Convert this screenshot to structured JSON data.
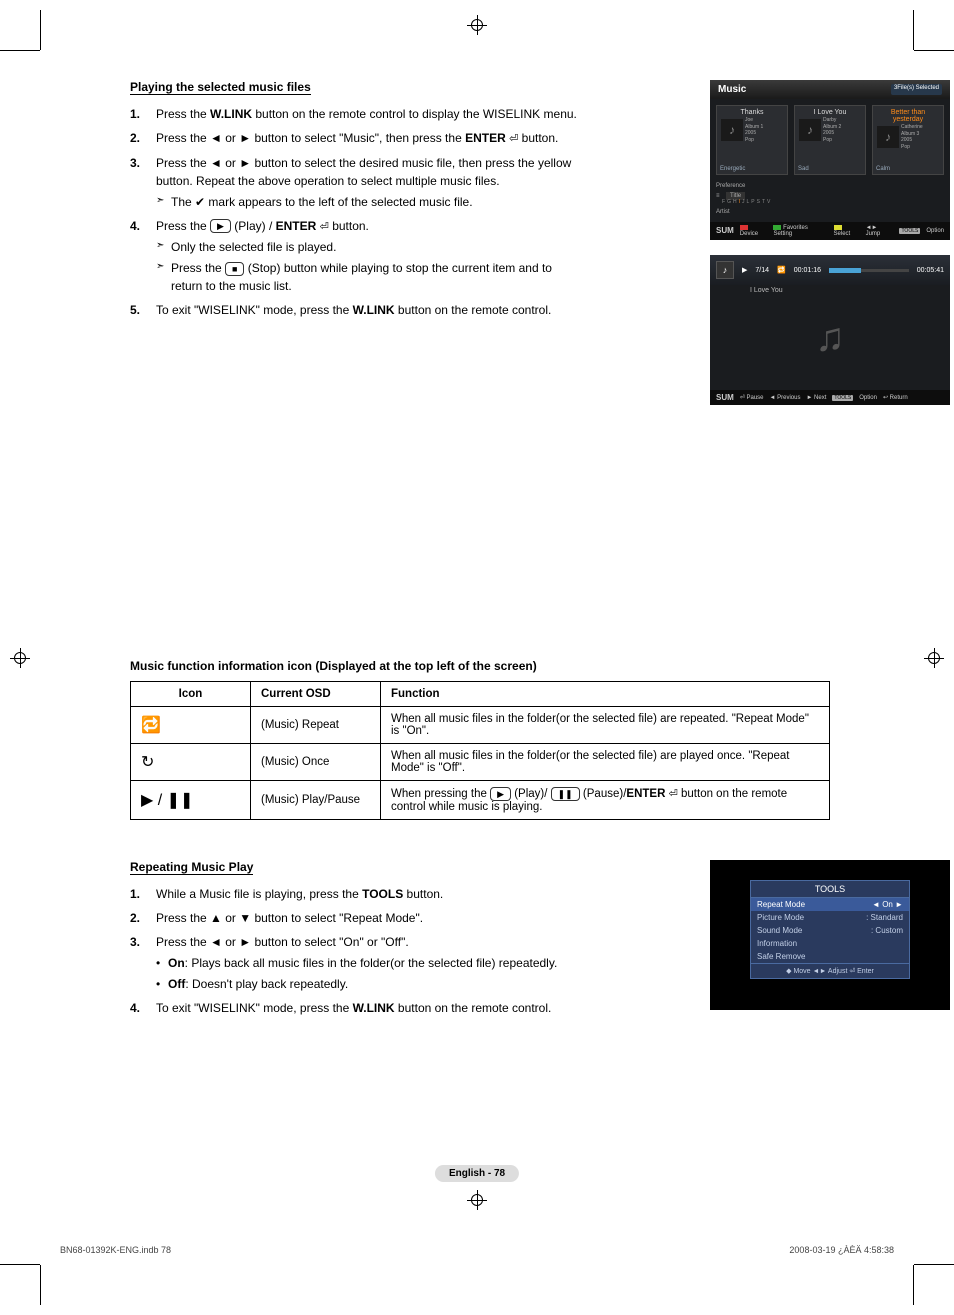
{
  "sections": {
    "playing": {
      "title": "Playing the selected music files",
      "step1": "Press the W.LINK button on the remote control to display the WISELINK menu.",
      "step2": "Press the ◄ or ► button to select \"Music\", then press the ENTER ⏎ button.",
      "step3": "Press the ◄ or ► button to select the desired music file, then press the yellow button. Repeat the above operation to select multiple music files.",
      "step3_sub": "The ✔ mark appears to the left of the selected music file.",
      "step4_pre": "Press the ",
      "step4_mid": " (Play) / ENTER ⏎ button.",
      "step4_sub1": "Only the selected file is played.",
      "step4_sub2a": "Press the ",
      "step4_sub2b": " (Stop) button while playing to stop the current item and to return to the music list.",
      "step5": "To exit \"WISELINK\" mode, press the W.LINK button on the remote control."
    },
    "iconTable": {
      "heading": "Music function information icon (Displayed at the top left of the screen)",
      "h_icon": "Icon",
      "h_osd": "Current OSD",
      "h_func": "Function",
      "r1_osd": "(Music) Repeat",
      "r1_func": "When all music files in the folder(or the selected file) are repeated. \"Repeat Mode\" is \"On\".",
      "r2_osd": "(Music) Once",
      "r2_func": "When all music files in the folder(or the selected file) are played once. \"Repeat Mode\" is \"Off\".",
      "r3_osd": "(Music) Play/Pause",
      "r3_func": "When pressing the  ▶  (Play)/  ❚❚  (Pause)/ENTER ⏎ button on the remote control while music is playing."
    },
    "repeat": {
      "title": "Repeating Music Play",
      "step1": "While a Music file is playing, press the TOOLS button.",
      "step2": "Press the ▲ or ▼ button to select \"Repeat Mode\".",
      "step3": "Press the ◄ or ► button to select \"On\" or \"Off\".",
      "b1": "On: Plays back all music files in the folder(or the selected file) repeatedly.",
      "b2": "Off: Doesn't play back repeatedly.",
      "step4": "To exit \"WISELINK\" mode, press the W.LINK button on the remote control."
    }
  },
  "shot1": {
    "title": "Music",
    "selected_badge": "3File(s) Selected",
    "tiles": [
      {
        "name": "Thanks",
        "artist": "Joe",
        "album": "Album 1",
        "year": "2005",
        "genre": "Pop",
        "mood": "Energetic"
      },
      {
        "name": "I Love You",
        "artist": "Darby",
        "album": "Album 2",
        "year": "2005",
        "genre": "Pop",
        "mood": "Sad"
      },
      {
        "name": "Better than yesterday",
        "artist": "Catherine",
        "album": "Album 3",
        "year": "2005",
        "genre": "Pop",
        "mood": "Calm"
      }
    ],
    "pref": "Preference",
    "sort_title": "Title",
    "artist": "Artist",
    "alpha": [
      "F",
      "G",
      "H",
      "I",
      "J",
      "L",
      "P",
      "S",
      "T",
      "V"
    ],
    "sum": "SUM",
    "bar": [
      "Device",
      "Favorites Setting",
      "Select",
      "◄► Jump",
      "TOOLS",
      "Option"
    ]
  },
  "shot2": {
    "track": "7/14",
    "elapsed": "00:01:16",
    "total": "00:05:41",
    "title": "I Love You",
    "sum": "SUM",
    "bar": [
      "⏎ Pause",
      "◄ Previous",
      "► Next",
      "TOOLS",
      "Option",
      "↩ Return"
    ]
  },
  "shot3": {
    "title": "TOOLS",
    "rows": [
      {
        "l": "Repeat Mode",
        "r": "◄    On    ►",
        "on": true
      },
      {
        "l": "Picture Mode",
        "r": ":   Standard"
      },
      {
        "l": "Sound Mode",
        "r": ":   Custom"
      },
      {
        "l": "Information",
        "r": ""
      },
      {
        "l": "Safe Remove",
        "r": ""
      }
    ],
    "foot": "◆ Move    ◄► Adjust    ⏎ Enter"
  },
  "pageNum": "English - 78",
  "footerLeft": "BN68-01392K-ENG.indb   78",
  "footerRight": "2008-03-19   ¿ÀÈÄ 4:58:38"
}
